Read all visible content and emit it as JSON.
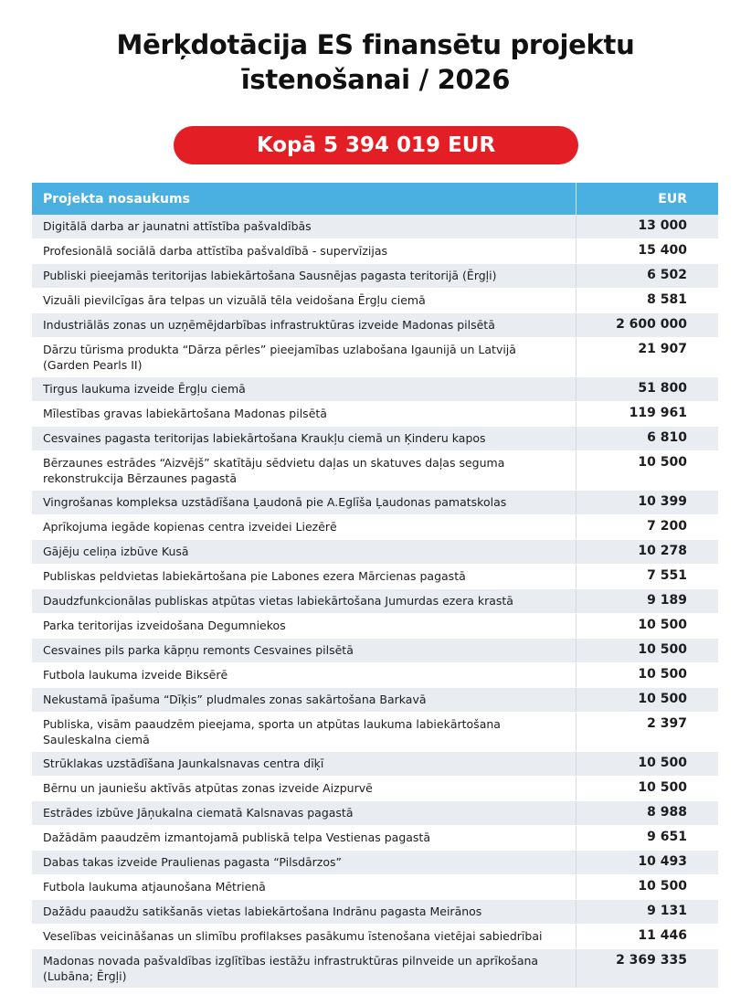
{
  "title_line1": "Mērķdotācija ES finansētu projektu",
  "title_line2": "īstenošanai / 2026",
  "total": "Kopā 5 394 019 EUR",
  "table": {
    "headers": [
      "Projekta nosaukums",
      "EUR"
    ],
    "rows": [
      {
        "name": "Digitālā darba ar jaunatni attīstība pašvaldībās",
        "amount": "13 000"
      },
      {
        "name": "Profesionālā sociālā darba attīstība pašvaldībā - supervīzijas",
        "amount": "15 400"
      },
      {
        "name": "Publiski pieejamās teritorijas labiekārtošana Sausnējas pagasta teritorijā (Ērgļi)",
        "amount": "6 502"
      },
      {
        "name": "Vizuāli pievilcīgas āra telpas un vizuālā tēla veidošana Ērgļu ciemā",
        "amount": "8 581"
      },
      {
        "name": "Industriālās zonas un uzņēmējdarbības infrastruktūras izveide Madonas pilsētā",
        "amount": "2 600 000"
      },
      {
        "name": "Dārzu tūrisma produkta “Dārza pērles” pieejamības uzlabošana Igaunijā un Latvijā (Garden Pearls II)",
        "amount": "21 907"
      },
      {
        "name": "Tirgus laukuma izveide Ērgļu ciemā",
        "amount": "51 800"
      },
      {
        "name": "Mīlestības gravas labiekārtošana Madonas pilsētā",
        "amount": "119 961"
      },
      {
        "name": "Cesvaines pagasta teritorijas labiekārtošana Kraukļu ciemā un Ķinderu kapos",
        "amount": "6 810"
      },
      {
        "name": "Bērzaunes estrādes “Aizvējš” skatītāju sēdvietu daļas un skatuves daļas seguma rekonstrukcija Bērzaunes pagastā",
        "amount": "10 500"
      },
      {
        "name": "Vingrošanas kompleksa uzstādīšana Ļaudonā pie A.Eglīša Ļaudonas pamatskolas",
        "amount": "10 399"
      },
      {
        "name": "Aprīkojuma iegāde kopienas centra izveidei Liezērē",
        "amount": "7 200"
      },
      {
        "name": "Gājēju celiņa izbūve Kusā",
        "amount": "10 278"
      },
      {
        "name": "Publiskas peldvietas labiekārtošana pie Labones ezera Mārcienas pagastā",
        "amount": "7 551"
      },
      {
        "name": "Daudzfunkcionālas publiskas atpūtas vietas labiekārtošana Jumurdas ezera krastā",
        "amount": "9 189"
      },
      {
        "name": "Parka teritorijas izveidošana Degumniekos",
        "amount": "10 500"
      },
      {
        "name": "Cesvaines pils parka kāpņu remonts Cesvaines pilsētā",
        "amount": "10 500"
      },
      {
        "name": "Futbola laukuma izveide Biksērē",
        "amount": "10 500"
      },
      {
        "name": "Nekustamā īpašuma “Dīķis” pludmales zonas sakārtošana Barkavā",
        "amount": "10 500"
      },
      {
        "name": "Publiska, visām paaudzēm pieejama, sporta un atpūtas laukuma labiekārtošana Sauleskalna ciemā",
        "amount": "2 397"
      },
      {
        "name": "Strūklakas uzstādīšana Jaunkalsnavas centra dīķī",
        "amount": "10 500"
      },
      {
        "name": "Bērnu un jauniešu aktīvās atpūtas zonas izveide Aizpurvē",
        "amount": "10 500"
      },
      {
        "name": "Estrādes izbūve Jāņukalna ciematā Kalsnavas pagastā",
        "amount": "8 988"
      },
      {
        "name": "Dažādām paaudzēm izmantojamā publiskā telpa Vestienas pagastā",
        "amount": "9 651"
      },
      {
        "name": "Dabas takas izveide Praulienas pagasta “Pilsdārzos”",
        "amount": "10 493"
      },
      {
        "name": "Futbola laukuma atjaunošana Mētrienā",
        "amount": "10 500"
      },
      {
        "name": "Dažādu paaudžu satikšanās vietas labiekārtošana Indrānu pagasta Meirānos",
        "amount": "9 131"
      },
      {
        "name": "Veselības veicināšanas un slimību profilakses pasākumu īstenošana vietējai sabiedrībai",
        "amount": "11 446"
      },
      {
        "name": "Madonas novada pašvaldības izglītības iestāžu infrastruktūras pilnveide un aprīkošana (Lubāna; Ērgļi)",
        "amount": "2 369 335"
      }
    ]
  },
  "colors": {
    "header": "#4aafe1",
    "total_pill": "#e31e24",
    "row_alt": "#e9edf2"
  }
}
